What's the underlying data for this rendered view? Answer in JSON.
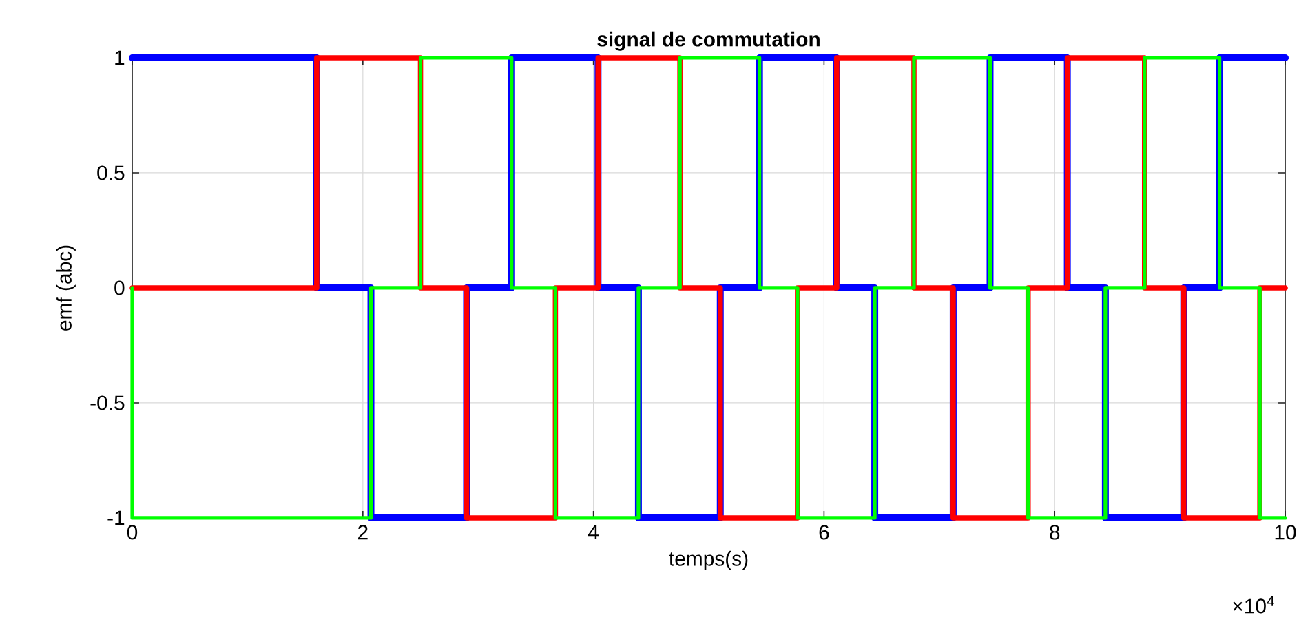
{
  "chart_data": {
    "type": "step",
    "title": "signal de commutation",
    "xlabel": "temps(s)",
    "ylabel": "emf (abc)",
    "annotations": [
      "×10$^{4}$"
    ],
    "xlim": [
      0,
      10
    ],
    "xticks": [
      0,
      2,
      4,
      6,
      8,
      10
    ],
    "ylim": [
      -1,
      1
    ],
    "yticks": [
      -1,
      -0.5,
      0,
      0.5,
      1
    ],
    "grid": true,
    "series": [
      {
        "color": "#0000ff",
        "x": [
          0,
          1.6,
          2.07,
          2.5,
          2.9,
          3.29,
          3.67,
          4.04,
          4.39,
          4.75,
          5.1,
          5.44,
          5.77,
          6.11,
          6.44,
          6.78,
          7.12,
          7.44,
          7.77,
          8.11,
          8.44,
          8.78,
          9.12,
          9.43,
          9.78,
          10
        ],
        "values": [
          1,
          0,
          -1,
          -1,
          0,
          1,
          1,
          0,
          -1,
          -1,
          0,
          1,
          1,
          0,
          -1,
          -1,
          0,
          1,
          1,
          0,
          -1,
          -1,
          0,
          1,
          1,
          1
        ]
      },
      {
        "color": "#ff0000",
        "x": [
          0,
          1.6,
          2.07,
          2.5,
          2.9,
          3.29,
          3.67,
          4.04,
          4.39,
          4.75,
          5.1,
          5.44,
          5.77,
          6.11,
          6.44,
          6.78,
          7.12,
          7.44,
          7.77,
          8.11,
          8.44,
          8.78,
          9.12,
          9.43,
          9.78,
          10
        ],
        "values": [
          0,
          1,
          1,
          0,
          -1,
          -1,
          0,
          1,
          1,
          0,
          -1,
          -1,
          0,
          1,
          1,
          0,
          -1,
          -1,
          0,
          1,
          1,
          0,
          -1,
          -1,
          0,
          0
        ]
      },
      {
        "color": "#00ff00",
        "x": [
          0,
          0,
          1.6,
          2.07,
          2.5,
          2.9,
          3.29,
          3.67,
          4.04,
          4.39,
          4.75,
          5.1,
          5.44,
          5.77,
          6.11,
          6.44,
          6.78,
          7.12,
          7.44,
          7.77,
          8.11,
          8.44,
          8.78,
          9.12,
          9.43,
          9.78,
          10
        ],
        "values": [
          0,
          -1,
          -1,
          0,
          1,
          1,
          0,
          -1,
          -1,
          0,
          1,
          1,
          0,
          -1,
          -1,
          0,
          1,
          1,
          0,
          -1,
          -1,
          0,
          1,
          1,
          0,
          -1,
          -1
        ]
      }
    ]
  }
}
